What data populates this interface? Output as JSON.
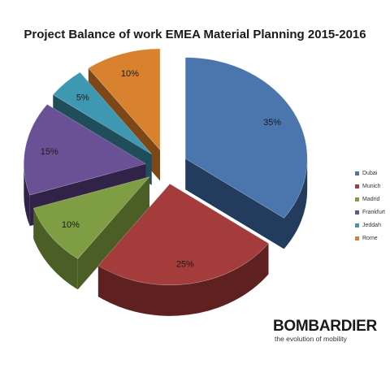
{
  "chart_data": {
    "type": "pie",
    "title": "Project Balance of work EMEA Material Planning 2015-2016",
    "slices": [
      {
        "name": "Dubai",
        "value": 35,
        "label": "35%",
        "color": "#4a76ad",
        "side": "#233b5c"
      },
      {
        "name": "Munich",
        "value": 25,
        "label": "25%",
        "color": "#a33c3a",
        "side": "#5e2120"
      },
      {
        "name": "Madrid",
        "value": 10,
        "label": "10%",
        "color": "#7f9e44",
        "side": "#4a5e26"
      },
      {
        "name": "Frankfurt",
        "value": 15,
        "label": "15%",
        "color": "#6a5196",
        "side": "#302347"
      },
      {
        "name": "Jeddah",
        "value": 5,
        "label": "5%",
        "color": "#3f98b1",
        "side": "#1f4d5a"
      },
      {
        "name": "Rome",
        "value": 10,
        "label": "10%",
        "color": "#d8822f",
        "side": "#7d4718"
      }
    ],
    "legend_position": "right"
  },
  "branding": {
    "name": "BOMBARDIER",
    "tagline": "the evolution of mobility"
  }
}
